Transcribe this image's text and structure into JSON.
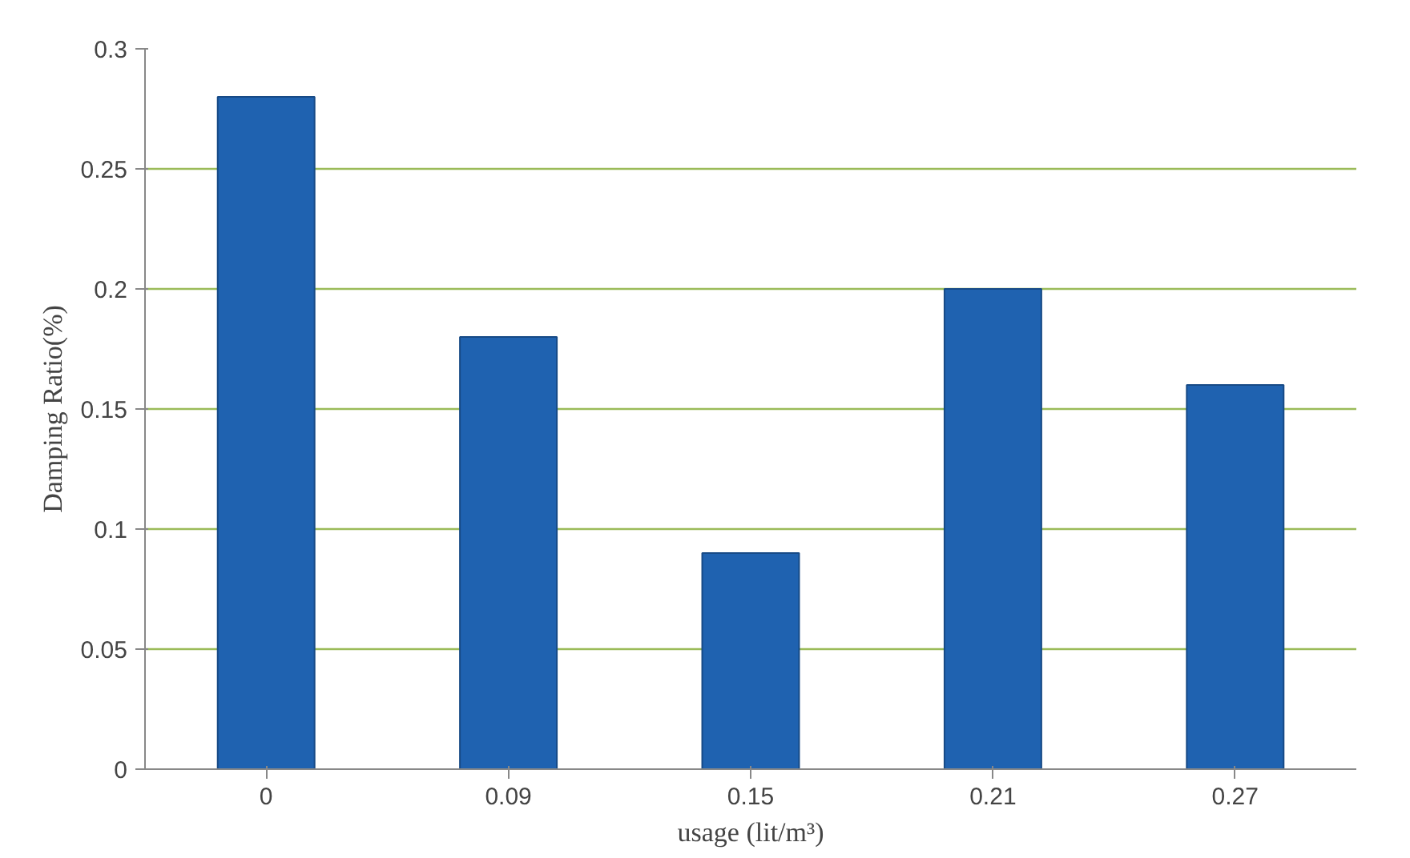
{
  "chart_data": {
    "type": "bar",
    "categories": [
      "0",
      "0.09",
      "0.15",
      "0.21",
      "0.27"
    ],
    "values": [
      0.28,
      0.18,
      0.09,
      0.2,
      0.16
    ],
    "color": "#1f62b0",
    "xlabel": "usage (lit/m³)",
    "ylabel": "Damping Ratio(%)",
    "ylim": [
      0,
      0.3
    ],
    "yticks": [
      0,
      0.05,
      0.1,
      0.15,
      0.2,
      0.25,
      0.3
    ],
    "grid": "y"
  }
}
